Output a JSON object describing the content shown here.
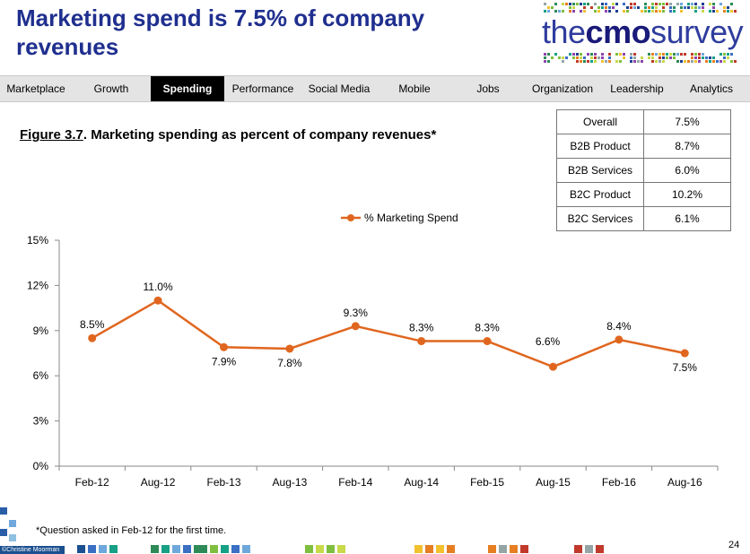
{
  "header": {
    "title": "Marketing spend is 7.5% of company revenues",
    "logo": {
      "prefix": "the",
      "bold": "cmo",
      "suffix": "survey"
    }
  },
  "nav": {
    "items": [
      {
        "label": "Marketplace",
        "active": false
      },
      {
        "label": "Growth",
        "active": false
      },
      {
        "label": "Spending",
        "active": true
      },
      {
        "label": "Performance",
        "active": false
      },
      {
        "label": "Social Media",
        "active": false
      },
      {
        "label": "Mobile",
        "active": false
      },
      {
        "label": "Jobs",
        "active": false
      },
      {
        "label": "Organization",
        "active": false
      },
      {
        "label": "Leadership",
        "active": false
      },
      {
        "label": "Analytics",
        "active": false
      }
    ]
  },
  "figure": {
    "number": "Figure 3.7",
    "caption": ".  Marketing spending as percent of company revenues*"
  },
  "summary_table": [
    {
      "segment": "Overall",
      "value": "7.5%"
    },
    {
      "segment": "B2B Product",
      "value": "8.7%"
    },
    {
      "segment": "B2B Services",
      "value": "6.0%"
    },
    {
      "segment": "B2C Product",
      "value": "10.2%"
    },
    {
      "segment": "B2C Services",
      "value": "6.1%"
    }
  ],
  "chart_data": {
    "type": "line",
    "title": "",
    "xlabel": "",
    "ylabel": "",
    "categories": [
      "Feb-12",
      "Aug-12",
      "Feb-13",
      "Aug-13",
      "Feb-14",
      "Aug-14",
      "Feb-15",
      "Aug-15",
      "Feb-16",
      "Aug-16"
    ],
    "series": [
      {
        "name": "% Marketing Spend",
        "values": [
          8.5,
          11.0,
          7.9,
          7.8,
          9.3,
          8.3,
          8.3,
          6.6,
          8.4,
          7.5
        ],
        "labels": [
          "8.5%",
          "11.0%",
          "7.9%",
          "7.8%",
          "9.3%",
          "8.3%",
          "8.3%",
          "6.6%",
          "8.4%",
          "7.5%"
        ],
        "color": "#e0661f"
      }
    ],
    "yticks": [
      0,
      3,
      6,
      9,
      12,
      15
    ],
    "ytick_labels": [
      "0%",
      "3%",
      "6%",
      "9%",
      "12%",
      "15%"
    ],
    "ylim": [
      0,
      15
    ],
    "grid": false,
    "legend": "top-center"
  },
  "footer": {
    "note": "*Question asked in Feb-12 for the first time.",
    "copyright": "©Christine Moorman",
    "page_number": "24"
  },
  "colors": {
    "title": "#1f2f8f",
    "series": "#e0661f",
    "nav_bg": "#e4e4e4",
    "nav_active": "#000000"
  }
}
